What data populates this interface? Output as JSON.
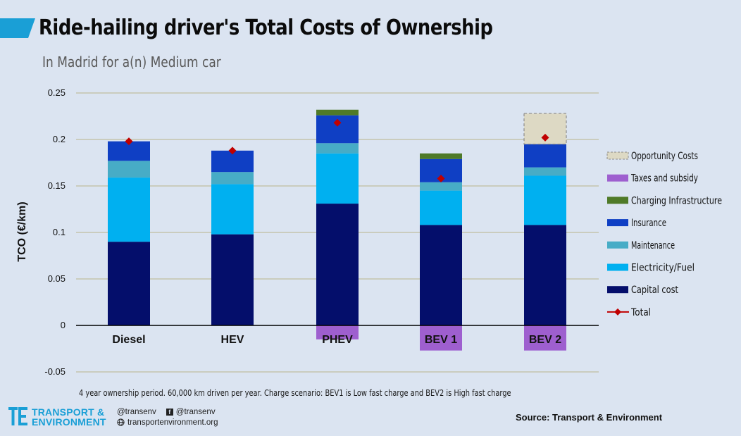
{
  "title": "Ride-hailing driver's Total Costs of Ownership",
  "subtitle": "In Madrid for a(n) Medium car",
  "footnote": "4 year ownership  period.  60,000 km driven per year.  Charge scenario:  BEV1 is Low fast charge and BEV2 is High fast charge",
  "source": "Source: Transport & Environment",
  "logo": {
    "line1": "TRANSPORT &",
    "line2": "ENVIRONMENT"
  },
  "social": {
    "twitter": "@transenv",
    "facebook": "@transenv",
    "website": "transportenvironment.org"
  },
  "colors": {
    "accent": "#1a9fd6",
    "opportunity": "#ddd9c4",
    "taxes": "#9e5fcf",
    "charging": "#4f7a28",
    "insurance": "#0f3fc4",
    "maintenance": "#47acc6",
    "electricity": "#00b0f0",
    "capital": "#040e6b",
    "total": "#c00000"
  },
  "chart_data": {
    "type": "bar",
    "stacked": true,
    "ylabel": "TCO (€/km)",
    "ylim": [
      -0.05,
      0.25
    ],
    "yticks": [
      "0.25",
      "0.2",
      "0.15",
      "0.1",
      "0.05",
      "0",
      "-0.05"
    ],
    "grid": true,
    "legend_position": "right",
    "categories": [
      "Diesel",
      "HEV",
      "PHEV",
      "BEV 1",
      "BEV 2"
    ],
    "series": [
      {
        "name": "Capital cost",
        "key": "capital",
        "values": [
          0.09,
          0.098,
          0.131,
          0.108,
          0.108
        ]
      },
      {
        "name": "Electricity/Fuel",
        "key": "electricity",
        "values": [
          0.069,
          0.054,
          0.054,
          0.037,
          0.053
        ]
      },
      {
        "name": "Maintenance",
        "key": "maintenance",
        "values": [
          0.018,
          0.013,
          0.011,
          0.009,
          0.009
        ]
      },
      {
        "name": "Insurance",
        "key": "insurance",
        "values": [
          0.021,
          0.023,
          0.03,
          0.025,
          0.025
        ]
      },
      {
        "name": "Charging Infrastructure",
        "key": "charging",
        "values": [
          0,
          0,
          0.006,
          0.006,
          0
        ]
      },
      {
        "name": "Taxes and subsidy",
        "key": "taxes",
        "values": [
          0,
          0,
          -0.015,
          -0.027,
          -0.027
        ]
      },
      {
        "name": "Opportunity Costs",
        "key": "opportunity",
        "values": [
          0,
          0,
          0,
          0,
          0.033
        ]
      }
    ],
    "total": {
      "name": "Total",
      "values": [
        0.198,
        0.188,
        0.218,
        0.158,
        0.202
      ]
    },
    "legend_order": [
      "Opportunity Costs",
      "Taxes and subsidy",
      "Charging Infrastructure",
      "Insurance",
      "Maintenance",
      "Electricity/Fuel",
      "Capital cost",
      "Total"
    ]
  }
}
